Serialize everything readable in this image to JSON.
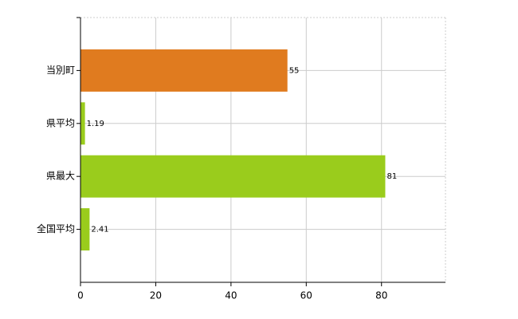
{
  "chart_data": {
    "type": "bar",
    "orientation": "horizontal",
    "categories": [
      "当別町",
      "県平均",
      "県最大",
      "全国平均"
    ],
    "values": [
      55,
      1.19,
      81,
      2.41
    ],
    "colors": [
      "#e07b1f",
      "#9acc1c",
      "#9acc1c",
      "#9acc1c"
    ],
    "xlim": [
      0,
      97
    ],
    "xticks": [
      0,
      20,
      40,
      60,
      80
    ],
    "grid": true
  }
}
